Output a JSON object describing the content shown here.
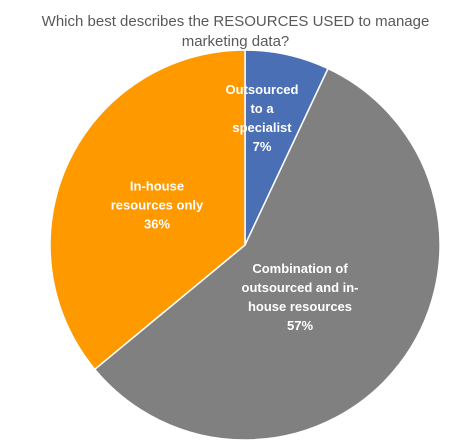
{
  "chart_data": {
    "type": "pie",
    "title": "Which best describes the RESOURCES USED to manage marketing data?",
    "categories": [
      "Outsourced to a specialist",
      "Combination of outsourced and in-house resources",
      "In-house resources only"
    ],
    "values": [
      7,
      57,
      36
    ],
    "value_labels": [
      "7%",
      "57%",
      "36%"
    ],
    "colors": [
      "#4a6fb5",
      "#808080",
      "#ff9900"
    ]
  }
}
